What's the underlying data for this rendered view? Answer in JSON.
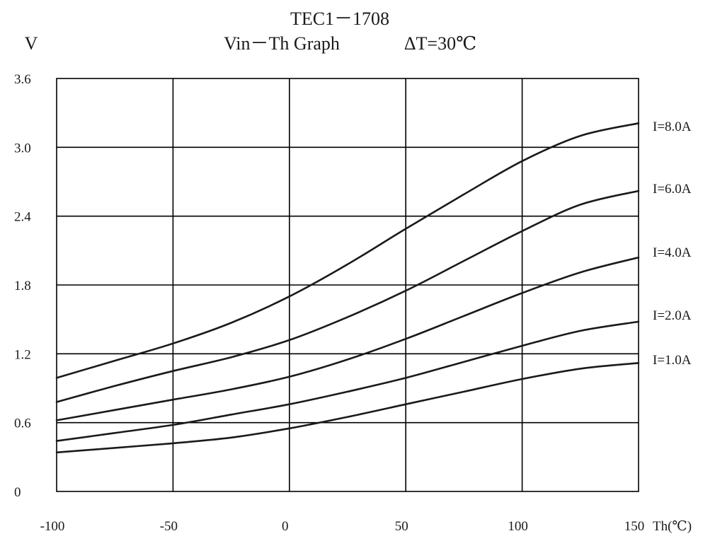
{
  "chart_data": {
    "type": "line",
    "title": "TEC1－1708",
    "subtitle": "Vin－Th Graph",
    "condition": "ΔT=30℃",
    "ylabel": "V",
    "xlabel": "Th(℃)",
    "xlim": [
      -100,
      150
    ],
    "ylim": [
      0,
      3.6
    ],
    "xticks": [
      -100,
      -50,
      0,
      50,
      100,
      150
    ],
    "yticks": [
      0,
      0.6,
      1.2,
      1.8,
      2.4,
      3.0,
      3.6
    ],
    "xtick_labels": [
      "-100",
      "-50",
      "0",
      "50",
      "100",
      "150"
    ],
    "ytick_labels": [
      "0",
      "0.6",
      "1.2",
      "1.8",
      "2.4",
      "3.0",
      "3.6"
    ],
    "grid": true,
    "series": [
      {
        "name": "I=8.0A",
        "x": [
          -100,
          -75,
          -50,
          -25,
          0,
          25,
          50,
          75,
          100,
          125,
          150
        ],
        "y": [
          0.99,
          1.14,
          1.29,
          1.47,
          1.7,
          1.98,
          2.29,
          2.59,
          2.88,
          3.1,
          3.21
        ]
      },
      {
        "name": "I=6.0A",
        "x": [
          -100,
          -75,
          -50,
          -25,
          0,
          25,
          50,
          75,
          100,
          125,
          150
        ],
        "y": [
          0.78,
          0.92,
          1.05,
          1.17,
          1.32,
          1.52,
          1.75,
          2.01,
          2.27,
          2.5,
          2.62
        ]
      },
      {
        "name": "I=4.0A",
        "x": [
          -100,
          -75,
          -50,
          -25,
          0,
          25,
          50,
          75,
          100,
          125,
          150
        ],
        "y": [
          0.62,
          0.71,
          0.8,
          0.89,
          1.0,
          1.15,
          1.33,
          1.53,
          1.73,
          1.91,
          2.04
        ]
      },
      {
        "name": "I=2.0A",
        "x": [
          -100,
          -75,
          -50,
          -25,
          0,
          25,
          50,
          75,
          100,
          125,
          150
        ],
        "y": [
          0.44,
          0.51,
          0.58,
          0.67,
          0.76,
          0.87,
          0.99,
          1.13,
          1.27,
          1.4,
          1.48
        ]
      },
      {
        "name": "I=1.0A",
        "x": [
          -100,
          -75,
          -50,
          -25,
          0,
          25,
          50,
          75,
          100,
          125,
          150
        ],
        "y": [
          0.34,
          0.38,
          0.42,
          0.47,
          0.55,
          0.65,
          0.76,
          0.87,
          0.98,
          1.07,
          1.12
        ]
      }
    ]
  }
}
